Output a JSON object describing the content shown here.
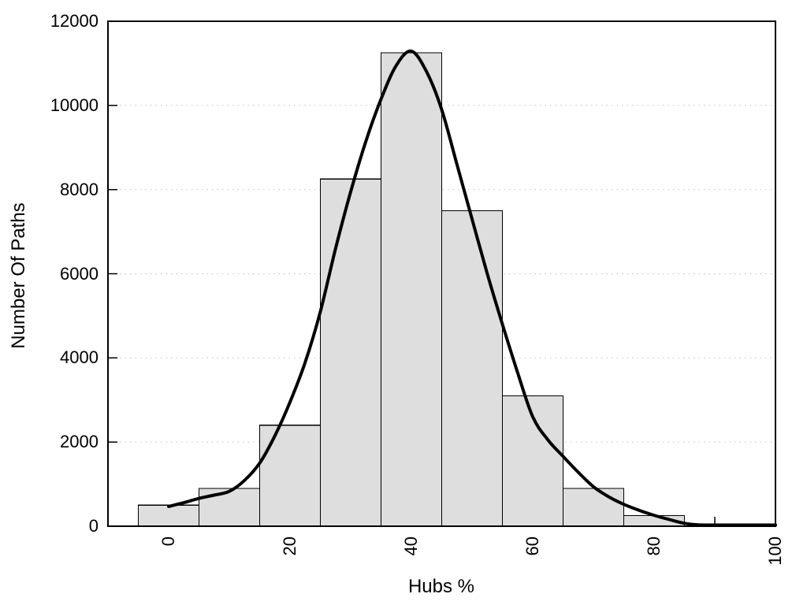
{
  "chart_data": {
    "type": "bar",
    "subtype": "histogram-with-fit-curve",
    "title": "",
    "xlabel": "Hubs %",
    "ylabel": "Number Of Paths",
    "xlim": [
      -10,
      100
    ],
    "ylim": [
      0,
      12000
    ],
    "xticks": [
      0,
      20,
      40,
      60,
      80,
      100
    ],
    "minor_xtick_step": 10,
    "yticks": [
      0,
      2000,
      4000,
      6000,
      8000,
      10000,
      12000
    ],
    "grid": "horizontal-dotted",
    "legend": "none",
    "bin_width": 10,
    "bin_centers": [
      0,
      10,
      20,
      30,
      40,
      50,
      60,
      70,
      80
    ],
    "bar_values": [
      500,
      900,
      2400,
      8250,
      11250,
      7500,
      3100,
      900,
      250
    ],
    "series": [
      {
        "name": "histogram-bars",
        "type": "bar",
        "categories": [
          0,
          10,
          20,
          30,
          40,
          50,
          60,
          70,
          80
        ],
        "values": [
          500,
          900,
          2400,
          8250,
          11250,
          7500,
          3100,
          900,
          250
        ]
      },
      {
        "name": "fit-curve",
        "type": "line",
        "x": [
          0,
          2.5,
          5,
          7.5,
          10,
          12.5,
          15,
          17.5,
          20,
          22.5,
          25,
          27.5,
          30,
          32.5,
          35,
          37.5,
          40,
          42.5,
          45,
          47.5,
          50,
          52.5,
          55,
          57.5,
          60,
          62.5,
          65,
          67.5,
          70,
          72.5,
          75,
          77.5,
          80,
          82.5,
          85,
          87.5,
          90,
          92.5,
          95,
          97.5,
          100
        ],
        "y": [
          470,
          560,
          660,
          740,
          830,
          1090,
          1500,
          2150,
          2950,
          3900,
          5100,
          6600,
          7950,
          9150,
          10150,
          10950,
          11290,
          10800,
          9900,
          8600,
          7300,
          6000,
          4800,
          3650,
          2600,
          2050,
          1660,
          1280,
          940,
          700,
          520,
          380,
          260,
          160,
          70,
          30,
          12,
          6,
          4,
          3,
          2
        ]
      }
    ],
    "colors": {
      "bar_fill": "#dedede",
      "bar_stroke": "#000000",
      "curve": "#000000",
      "grid": "#c9c9c9",
      "frame": "#000000",
      "text": "#000000",
      "background": "#ffffff"
    }
  }
}
